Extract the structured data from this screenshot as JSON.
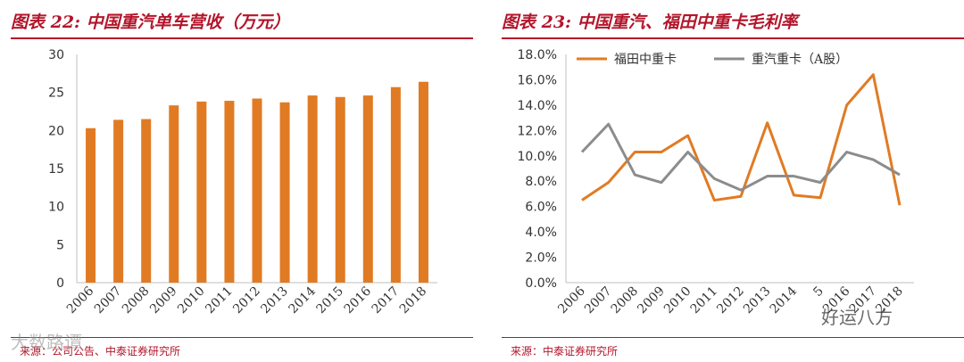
{
  "left": {
    "title": "图表 22:  中国重汽单车营收（万元）",
    "source": "来源：公司公告、中泰证券研究所",
    "chart_data": {
      "type": "bar",
      "categories": [
        "2006",
        "2007",
        "2008",
        "2009",
        "2010",
        "2011",
        "2012",
        "2013",
        "2014",
        "2015",
        "2016",
        "2017",
        "2018"
      ],
      "values": [
        20.3,
        21.4,
        21.5,
        23.3,
        23.8,
        23.9,
        24.2,
        23.7,
        24.6,
        24.4,
        24.6,
        25.7,
        26.4
      ],
      "yticks": [
        "0",
        "5",
        "10",
        "15",
        "20",
        "25",
        "30"
      ],
      "ylim": [
        0,
        30
      ],
      "title": "图表 22:  中国重汽单车营收（万元）",
      "xlabel": "",
      "ylabel": "",
      "color": "#e07b24"
    }
  },
  "right": {
    "title": "图表 23:  中国重汽、福田中重卡毛利率",
    "source": "来源：中泰证券研究所",
    "chart_data": {
      "type": "line",
      "categories": [
        "2006",
        "2007",
        "2008",
        "2009",
        "2010",
        "2011",
        "2012",
        "2013",
        "2014",
        "5",
        "2016",
        "2017",
        "2018"
      ],
      "series": [
        {
          "name": "福田中重卡",
          "color": "#e07b24",
          "values": [
            6.5,
            7.9,
            10.3,
            10.3,
            11.6,
            6.5,
            6.8,
            12.6,
            6.9,
            6.7,
            14.0,
            16.4,
            6.1
          ]
        },
        {
          "name": "重汽重卡（A股）",
          "color": "#8c8c8c",
          "values": [
            10.3,
            12.5,
            8.5,
            7.9,
            10.3,
            8.2,
            7.3,
            8.4,
            8.4,
            7.9,
            10.3,
            9.7,
            8.5
          ]
        }
      ],
      "yticks": [
        "0.0%",
        "2.0%",
        "4.0%",
        "6.0%",
        "8.0%",
        "10.0%",
        "12.0%",
        "14.0%",
        "16.0%",
        "18.0%"
      ],
      "ylim": [
        0,
        18
      ],
      "legend": "top"
    }
  },
  "watermarks": {
    "left": "大数路谭",
    "right": "好运八方"
  }
}
